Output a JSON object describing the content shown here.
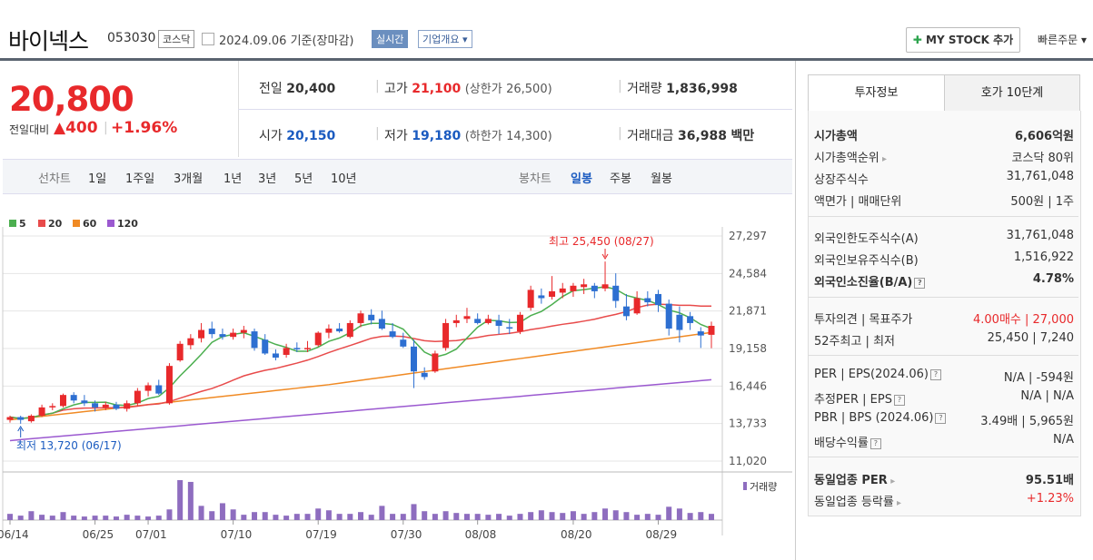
{
  "header": {
    "stock_name": "바이넥스",
    "stock_code": "053030",
    "market": "코스닥",
    "date": "2024.09.06  기준(장마감)",
    "realtime": "실시간",
    "company_info": "기업개요",
    "mystock": "MY STOCK 추가",
    "fast_order": "빠른주문"
  },
  "price": {
    "current": "20,800",
    "change_label": "전일대비",
    "change": "400",
    "change_pct": "+1.96%"
  },
  "summary": {
    "prev_label": "전일",
    "prev": "20,400",
    "high_label": "고가",
    "high": "21,100",
    "upper_label": "(상한가",
    "upper": "26,500)",
    "volume_label": "거래량",
    "volume": "1,836,998",
    "open_label": "시가",
    "open": "20,150",
    "low_label": "저가",
    "low": "19,180",
    "lower_label": "(하한가",
    "lower": "14,300)",
    "amount_label": "거래대금",
    "amount": "36,988",
    "amount_unit": "백만"
  },
  "periods": {
    "line_label": "선차트",
    "line_items": [
      "1일",
      "1주일",
      "3개월",
      "1년",
      "3년",
      "5년",
      "10년"
    ],
    "candle_label": "봉차트",
    "candle_items": [
      "일봉",
      "주봉",
      "월봉"
    ],
    "candle_selected": "일봉"
  },
  "legend": [
    {
      "label": "5",
      "color": "#4caf50"
    },
    {
      "label": "20",
      "color": "#e84b4b"
    },
    {
      "label": "60",
      "color": "#f08a24"
    },
    {
      "label": "120",
      "color": "#9b59d0"
    }
  ],
  "chart_data": {
    "type": "candlestick",
    "y_ticks": [
      "27,297",
      "24,584",
      "21,871",
      "19,158",
      "16,446",
      "13,733",
      "11,020"
    ],
    "ylim": [
      11020,
      27297
    ],
    "x_ticks": [
      "06/14",
      "06/25",
      "07/01",
      "07/10",
      "07/19",
      "07/30",
      "08/08",
      "08/20",
      "08/29"
    ],
    "high_annotation": "최고 25,450 (08/27)",
    "low_annotation": "최저 13,720 (06/17)",
    "volume_label": "거래량",
    "candles": [
      [
        14000,
        14300,
        13800,
        14200
      ],
      [
        14200,
        14300,
        13720,
        14000
      ],
      [
        13900,
        14400,
        13800,
        14300
      ],
      [
        14300,
        15100,
        14200,
        14900
      ],
      [
        14900,
        15200,
        14700,
        15000
      ],
      [
        15000,
        15900,
        14900,
        15800
      ],
      [
        15800,
        16000,
        15200,
        15400
      ],
      [
        15400,
        15800,
        15000,
        15200
      ],
      [
        15200,
        15400,
        14600,
        14900
      ],
      [
        14900,
        15300,
        14700,
        15100
      ],
      [
        15100,
        15300,
        14700,
        14800
      ],
      [
        14800,
        15400,
        14600,
        15200
      ],
      [
        15200,
        16300,
        15000,
        16100
      ],
      [
        16100,
        16700,
        15700,
        16500
      ],
      [
        16500,
        16900,
        15800,
        15900
      ],
      [
        15200,
        18100,
        15100,
        17900
      ],
      [
        18300,
        19700,
        18200,
        19500
      ],
      [
        19400,
        20200,
        19100,
        19900
      ],
      [
        19900,
        21000,
        19600,
        20500
      ],
      [
        20600,
        21100,
        19900,
        20200
      ],
      [
        20200,
        20600,
        19800,
        20000
      ],
      [
        20000,
        20600,
        19800,
        20300
      ],
      [
        20300,
        20800,
        19900,
        20500
      ],
      [
        20400,
        20600,
        19000,
        19200
      ],
      [
        19800,
        20200,
        18700,
        18800
      ],
      [
        18800,
        19100,
        18300,
        18500
      ],
      [
        18700,
        19500,
        18500,
        19200
      ],
      [
        19200,
        19600,
        18900,
        19100
      ],
      [
        19100,
        19700,
        18900,
        19200
      ],
      [
        19400,
        20400,
        19300,
        20300
      ],
      [
        20300,
        20900,
        19900,
        20600
      ],
      [
        20600,
        21000,
        20300,
        20400
      ],
      [
        20000,
        21200,
        19900,
        21000
      ],
      [
        21000,
        21900,
        20700,
        21700
      ],
      [
        21600,
        22000,
        20900,
        21200
      ],
      [
        21300,
        21900,
        20500,
        20600
      ],
      [
        20400,
        21000,
        19900,
        20000
      ],
      [
        19800,
        20300,
        19200,
        19300
      ],
      [
        19300,
        19800,
        16300,
        17500
      ],
      [
        17400,
        17800,
        16900,
        17100
      ],
      [
        17500,
        19000,
        17400,
        18800
      ],
      [
        19200,
        21300,
        19000,
        21000
      ],
      [
        21000,
        21600,
        20700,
        21200
      ],
      [
        21300,
        22100,
        21000,
        21500
      ],
      [
        21300,
        21700,
        20900,
        21000
      ],
      [
        21000,
        21600,
        20900,
        21300
      ],
      [
        21200,
        21600,
        20200,
        20800
      ],
      [
        20700,
        21300,
        20200,
        20600
      ],
      [
        20400,
        21800,
        20200,
        21600
      ],
      [
        22100,
        23700,
        21900,
        23400
      ],
      [
        23000,
        23500,
        22400,
        22800
      ],
      [
        22900,
        24400,
        22700,
        23300
      ],
      [
        23200,
        23900,
        22800,
        23500
      ],
      [
        23300,
        23900,
        22900,
        23700
      ],
      [
        23600,
        24200,
        23100,
        23800
      ],
      [
        23700,
        23900,
        22800,
        23300
      ],
      [
        23500,
        25450,
        23300,
        23800
      ],
      [
        23700,
        24600,
        22100,
        22600
      ],
      [
        22200,
        23100,
        21200,
        21500
      ],
      [
        21700,
        23300,
        21600,
        22800
      ],
      [
        22800,
        23300,
        22200,
        22500
      ],
      [
        23100,
        23400,
        21800,
        22300
      ],
      [
        22400,
        22700,
        20100,
        20600
      ],
      [
        21600,
        22200,
        19600,
        20500
      ],
      [
        21500,
        21800,
        20500,
        21000
      ],
      [
        20400,
        20700,
        19200,
        20100
      ],
      [
        20150,
        21100,
        19180,
        20800
      ]
    ],
    "volumes": [
      0.7,
      0.5,
      1.0,
      0.6,
      0.5,
      0.9,
      0.5,
      0.4,
      0.5,
      0.5,
      0.4,
      0.6,
      0.5,
      0.4,
      0.5,
      1.2,
      4.5,
      4.3,
      1.6,
      1.0,
      1.9,
      1.2,
      0.6,
      0.9,
      0.9,
      0.6,
      0.5,
      0.7,
      0.7,
      1.3,
      1.1,
      0.7,
      0.7,
      0.9,
      0.6,
      1.6,
      0.7,
      0.7,
      1.8,
      1.0,
      0.7,
      1.0,
      0.8,
      0.7,
      0.7,
      0.6,
      0.7,
      0.5,
      0.7,
      0.9,
      1.1,
      0.9,
      0.8,
      1.0,
      0.7,
      0.9,
      1.3,
      1.1,
      0.9,
      0.6,
      0.7,
      0.6,
      1.5,
      1.3,
      0.8,
      0.9,
      0.7
    ]
  },
  "sidebar": {
    "tab_active": "투자정보",
    "tab_other": "호가 10단계",
    "rows": [
      {
        "k": "시가총액",
        "v": "6,606억원",
        "bold": true
      },
      {
        "k": "시가총액순위",
        "v": "코스닥 80위"
      },
      {
        "k": "상장주식수",
        "v": "31,761,048"
      },
      {
        "k": "액면가 | 매매단위",
        "v": "500원 | 1주"
      },
      {
        "k": "외국인한도주식수(A)",
        "v": "31,761,048"
      },
      {
        "k": "외국인보유주식수(B)",
        "v": "1,516,922"
      },
      {
        "k": "외국인소진율(B/A)",
        "v": "4.78%",
        "bold": true
      },
      {
        "k": "투자의견 | 목표주가",
        "v": "4.00매수 | 27,000"
      },
      {
        "k": "52주최고 | 최저",
        "v": "25,450 | 7,240"
      },
      {
        "k": "PER | EPS(2024.06)",
        "v": "N/A | -594원"
      },
      {
        "k": "추정PER | EPS",
        "v": "N/A | N/A"
      },
      {
        "k": "PBR | BPS (2024.06)",
        "v": "3.49배 | 5,965원"
      },
      {
        "k": "배당수익률",
        "v": "N/A"
      },
      {
        "k": "동일업종 PER",
        "v": "95.51배",
        "bold": true
      },
      {
        "k": "동일업종 등락률",
        "v": "+1.23%"
      }
    ]
  }
}
